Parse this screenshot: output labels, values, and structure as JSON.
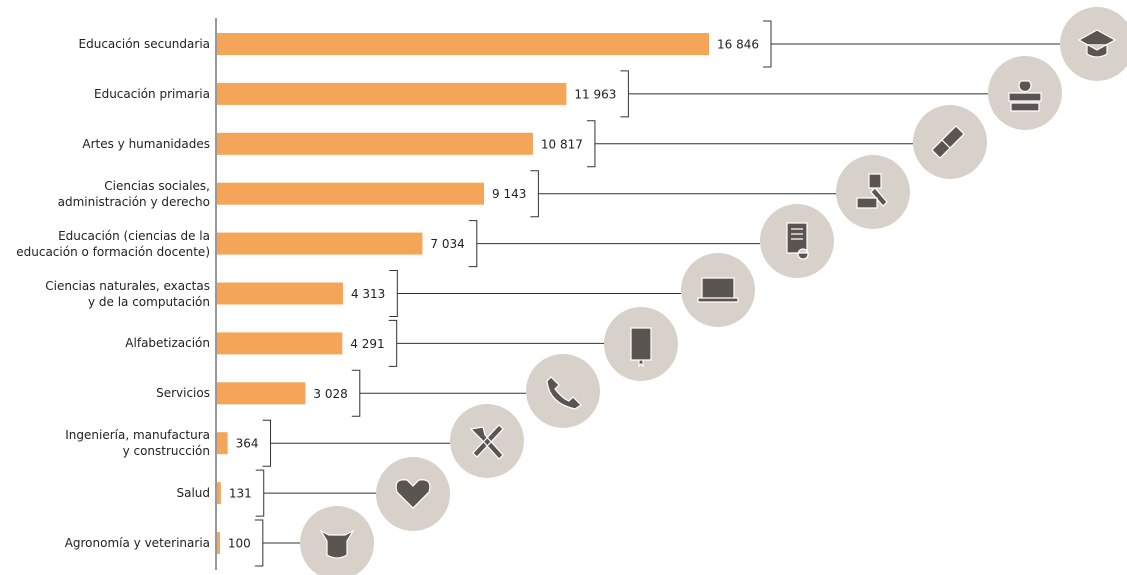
{
  "chart_data": {
    "type": "bar",
    "orientation": "horizontal",
    "color": "#f5a557",
    "categories": [
      "Educación secundaria",
      "Educación primaria",
      "Artes y humanidades",
      "Ciencias sociales,\nadministración y derecho",
      "Educación (ciencias de la\neducación o formación docente)",
      "Ciencias naturales,  exactas\ny de la computación",
      "Alfabetización",
      "Servicios",
      "Ingeniería, manufactura\ny construcción",
      "Salud",
      "Agronomía y veterinaria"
    ],
    "values": [
      16846,
      11963,
      10817,
      9143,
      7034,
      4313,
      4291,
      3028,
      364,
      131,
      100
    ],
    "value_labels": [
      "16 846",
      "11 963",
      "10 817",
      "9 143",
      "7 034",
      "4 313",
      "4 291",
      "3 028",
      "364",
      "131",
      "100"
    ]
  }
}
